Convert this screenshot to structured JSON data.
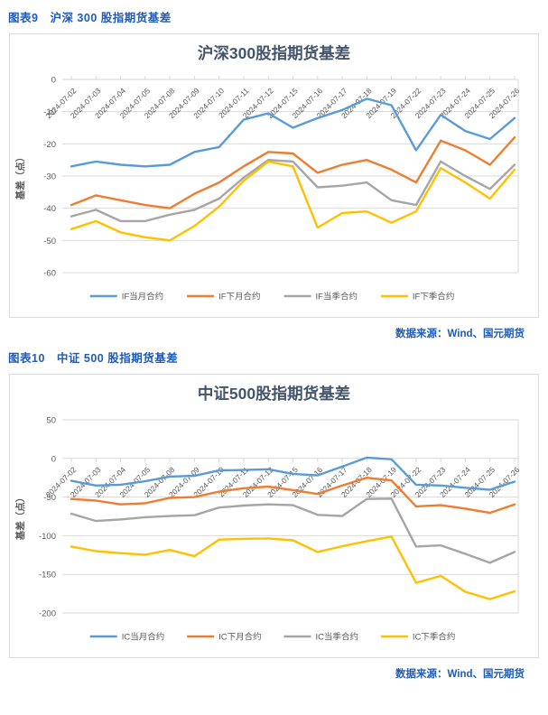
{
  "captions": {
    "fig9": "图表9　沪深 300 股指期货基差",
    "fig10": "图表10　中证 500 股指期货基差"
  },
  "source": {
    "text": "数据来源：Wind、国元期货"
  },
  "colors": {
    "caption_blue": "#1E5BB8",
    "title": "#44546A",
    "axis": "#595959",
    "grid": "#D9D9D9",
    "series_blue": "#5B9BD5",
    "series_orange": "#ED7D31",
    "series_gray": "#A5A5A5",
    "series_yellow": "#FFC000"
  },
  "chart_data": [
    {
      "type": "line",
      "title": "沪深300股指期货基差",
      "ylabel": "基差（点）",
      "xlabel": "",
      "ylim": [
        -60,
        0
      ],
      "yticks": [
        0,
        -10,
        -20,
        -30,
        -40,
        -50,
        -60
      ],
      "grid": true,
      "legend_position": "bottom",
      "categories": [
        "2024-07-02",
        "2024-07-03",
        "2024-07-04",
        "2024-07-05",
        "2024-07-08",
        "2024-07-09",
        "2024-07-10",
        "2024-07-11",
        "2024-07-12",
        "2024-07-15",
        "2024-07-16",
        "2024-07-17",
        "2024-07-18",
        "2024-07-19",
        "2024-07-22",
        "2024-07-23",
        "2024-07-24",
        "2024-07-25",
        "2024-07-26"
      ],
      "series": [
        {
          "name": "IF当月合约",
          "color": "#5B9BD5",
          "values": [
            -27,
            -25.5,
            -26.5,
            -27,
            -26.5,
            -22.5,
            -21,
            -12.5,
            -10.5,
            -15,
            -12,
            -9.5,
            -6,
            -8,
            -22,
            -11,
            -16,
            -18.5,
            -12
          ]
        },
        {
          "name": "IF下月合约",
          "color": "#ED7D31",
          "values": [
            -39,
            -36,
            -37.5,
            -39,
            -40,
            -35.5,
            -32,
            -27,
            -22.5,
            -23,
            -29,
            -26.5,
            -25,
            -28,
            -32,
            -19,
            -22,
            -26.5,
            -18
          ]
        },
        {
          "name": "IF当季合约",
          "color": "#A5A5A5",
          "values": [
            -42.5,
            -40.5,
            -44,
            -44,
            -42,
            -40.5,
            -37,
            -30.5,
            -25,
            -25.5,
            -33.5,
            -33,
            -32,
            -37.5,
            -39,
            -25.5,
            -30,
            -34,
            -26.5
          ]
        },
        {
          "name": "IF下季合约",
          "color": "#FFC000",
          "values": [
            -46.5,
            -44,
            -47.5,
            -49,
            -50,
            -45.5,
            -39.5,
            -31.5,
            -25.5,
            -27,
            -46,
            -41.5,
            -41,
            -44.5,
            -41,
            -27.5,
            -32,
            -37,
            -28
          ]
        }
      ]
    },
    {
      "type": "line",
      "title": "中证500股指期货基差",
      "ylabel": "基差（点）",
      "xlabel": "",
      "ylim": [
        -200,
        50
      ],
      "yticks": [
        50,
        0,
        -50,
        -100,
        -150,
        -200
      ],
      "grid": true,
      "legend_position": "bottom",
      "categories": [
        "2024-07-02",
        "2024-07-03",
        "2024-07-04",
        "2024-07-05",
        "2024-07-08",
        "2024-07-09",
        "2024-07-10",
        "2024-07-11",
        "2024-07-12",
        "2024-07-15",
        "2024-07-16",
        "2024-07-17",
        "2024-07-18",
        "2024-07-19",
        "2024-07-22",
        "2024-07-23",
        "2024-07-24",
        "2024-07-25",
        "2024-07-26"
      ],
      "series": [
        {
          "name": "IC当月合约",
          "color": "#5B9BD5",
          "values": [
            -29,
            -35,
            -34,
            -29.5,
            -23.5,
            -22.5,
            -15.5,
            -15,
            -14,
            -20,
            -22,
            -10.5,
            1,
            -1,
            -34,
            -35,
            -38,
            -40.5,
            -30
          ]
        },
        {
          "name": "IC下月合约",
          "color": "#ED7D31",
          "values": [
            -52.5,
            -54.5,
            -59.5,
            -58,
            -51,
            -50,
            -43,
            -38.5,
            -36.5,
            -41,
            -46,
            -35,
            -25,
            -28.5,
            -62,
            -60.5,
            -65,
            -70.5,
            -59.5
          ]
        },
        {
          "name": "IC当季合约",
          "color": "#A5A5A5",
          "values": [
            -71.5,
            -81,
            -79,
            -76,
            -74.5,
            -73.5,
            -63.5,
            -61,
            -59.5,
            -60.5,
            -73,
            -74.5,
            -52.5,
            -52,
            -114,
            -112.5,
            -123.5,
            -135,
            -121
          ]
        },
        {
          "name": "IC下季合约",
          "color": "#FFC000",
          "values": [
            -114,
            -120,
            -122.5,
            -124.5,
            -118.5,
            -126.5,
            -105,
            -104,
            -103.5,
            -106,
            -121,
            -113.5,
            -107,
            -101,
            -161,
            -152,
            -172.5,
            -182,
            -172
          ]
        }
      ]
    }
  ]
}
